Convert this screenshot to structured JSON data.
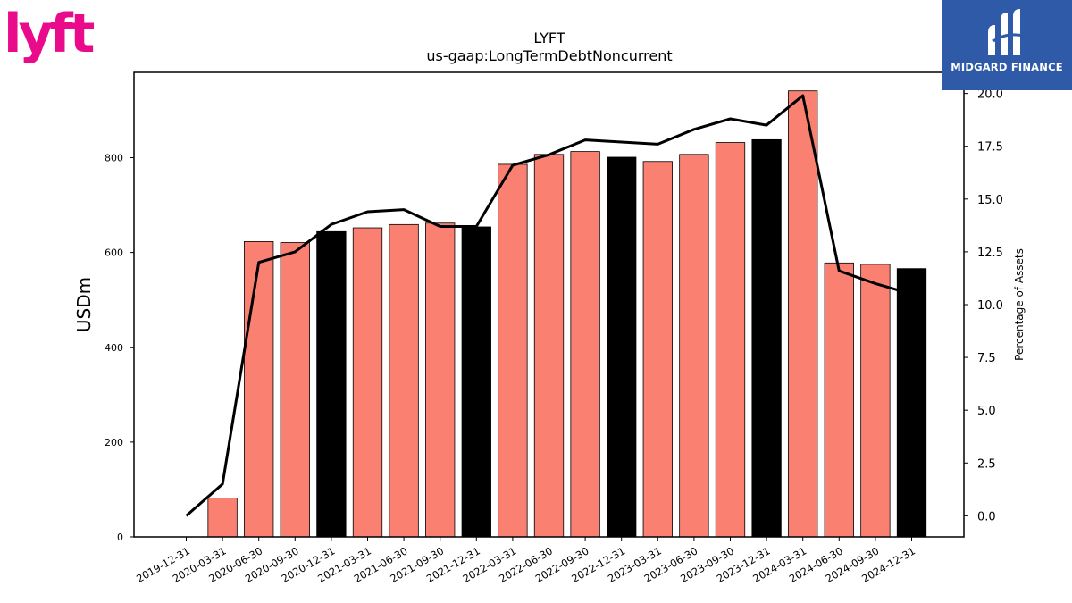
{
  "chart_data": {
    "type": "bar",
    "title": "LYFT",
    "subtitle": "us-gaap:LongTermDebtNoncurrent",
    "ylabel": "USDm",
    "y2label": "Percentage of Assets",
    "ylim": [
      0,
      980
    ],
    "y2lim": [
      -1.0,
      21.0
    ],
    "yticks": [
      0,
      200,
      400,
      600,
      800
    ],
    "y2ticks": [
      0.0,
      2.5,
      5.0,
      7.5,
      10.0,
      12.5,
      15.0,
      17.5,
      20.0
    ],
    "y2tick_labels": [
      "0.0",
      "2.5",
      "5.0",
      "7.5",
      "10.0",
      "12.5",
      "15.0",
      "17.5",
      "20.0"
    ],
    "categories": [
      "2019-12-31",
      "2020-03-31",
      "2020-06-30",
      "2020-09-30",
      "2020-12-31",
      "2021-03-31",
      "2021-06-30",
      "2021-09-30",
      "2021-12-31",
      "2022-03-31",
      "2022-06-30",
      "2022-09-30",
      "2022-12-31",
      "2023-03-31",
      "2023-06-30",
      "2023-09-30",
      "2023-12-31",
      "2024-03-31",
      "2024-06-30",
      "2024-09-30",
      "2024-12-31"
    ],
    "series": [
      {
        "type": "bar",
        "values": [
          0,
          82,
          623,
          621,
          644,
          652,
          659,
          662,
          654,
          786,
          807,
          813,
          801,
          792,
          807,
          832,
          838,
          941,
          578,
          575,
          566
        ],
        "colors": [
          "#fa8072",
          "#fa8072",
          "#fa8072",
          "#fa8072",
          "#000000",
          "#fa8072",
          "#fa8072",
          "#fa8072",
          "#000000",
          "#fa8072",
          "#fa8072",
          "#fa8072",
          "#000000",
          "#fa8072",
          "#fa8072",
          "#fa8072",
          "#000000",
          "#fa8072",
          "#fa8072",
          "#fa8072",
          "#000000"
        ]
      },
      {
        "type": "line",
        "axis": "right",
        "color": "#000000",
        "values": [
          0.0,
          1.5,
          12.0,
          12.5,
          13.8,
          14.4,
          14.5,
          13.7,
          13.7,
          16.6,
          17.1,
          17.8,
          17.7,
          17.6,
          18.3,
          18.8,
          18.5,
          19.9,
          11.6,
          11.0,
          10.5
        ]
      }
    ],
    "grid": false,
    "legend": "none"
  },
  "logos": {
    "lyft": {
      "text": "lyft",
      "color": "#ea0b8c"
    },
    "midgard": {
      "text": "MIDGARD FINANCE",
      "background": "#2f5aa8"
    }
  }
}
